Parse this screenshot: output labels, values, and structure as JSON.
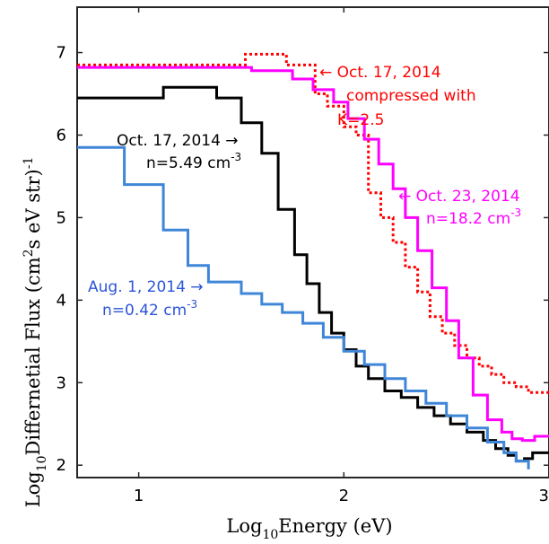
{
  "chart_data": {
    "type": "line",
    "xlabel": {
      "base": "Log",
      "sub": "10",
      "rest": "Energy  (eV)"
    },
    "ylabel": {
      "base": "Log",
      "sub": "10",
      "mid": "Differnetial  Flux  (cm",
      "sup": "2",
      "rest": "s  eV  str)",
      "sup2": "-1"
    },
    "xlim": [
      0.7,
      3.0
    ],
    "ylim": [
      1.85,
      7.55
    ],
    "xticks": [
      1,
      2,
      3
    ],
    "yticks": [
      2,
      3,
      4,
      5,
      6,
      7
    ],
    "grid": false,
    "series": [
      {
        "name": "Oct. 17, 2014 compressed with K=2.5",
        "color": "#ff0000",
        "style": "dotted",
        "step": true,
        "x": [
          0.7,
          1.48,
          1.52,
          1.72,
          1.86,
          1.92,
          2.0,
          2.06,
          2.12,
          2.18,
          2.24,
          2.3,
          2.36,
          2.42,
          2.48,
          2.54,
          2.6,
          2.66,
          2.72,
          2.78,
          2.84,
          2.9,
          3.0
        ],
        "y": [
          6.85,
          6.85,
          6.98,
          6.85,
          6.5,
          6.35,
          6.1,
          6.0,
          5.3,
          5.0,
          4.7,
          4.4,
          4.1,
          3.8,
          3.6,
          3.45,
          3.3,
          3.2,
          3.1,
          3.0,
          2.95,
          2.88,
          2.88
        ]
      },
      {
        "name": "Oct. 23, 2014",
        "color": "#ff00ff",
        "style": "solid",
        "step": true,
        "x": [
          0.7,
          1.3,
          1.55,
          1.75,
          1.85,
          1.95,
          2.02,
          2.1,
          2.17,
          2.24,
          2.3,
          2.36,
          2.43,
          2.5,
          2.56,
          2.63,
          2.7,
          2.77,
          2.82,
          2.87,
          2.93,
          3.0
        ],
        "y": [
          6.82,
          6.82,
          6.78,
          6.68,
          6.55,
          6.4,
          6.2,
          5.95,
          5.65,
          5.35,
          5.0,
          4.6,
          4.15,
          3.75,
          3.3,
          2.85,
          2.55,
          2.4,
          2.32,
          2.3,
          2.35,
          2.35
        ]
      },
      {
        "name": "Oct. 17, 2014",
        "color": "#000000",
        "style": "solid",
        "step": true,
        "x": [
          0.7,
          0.98,
          1.12,
          1.38,
          1.5,
          1.6,
          1.68,
          1.76,
          1.82,
          1.88,
          1.94,
          2.0,
          2.06,
          2.12,
          2.2,
          2.28,
          2.36,
          2.44,
          2.52,
          2.6,
          2.68,
          2.74,
          2.8,
          2.84,
          2.88,
          2.92,
          3.0
        ],
        "y": [
          6.45,
          6.45,
          6.58,
          6.45,
          6.15,
          5.78,
          5.1,
          4.55,
          4.2,
          3.85,
          3.6,
          3.4,
          3.2,
          3.05,
          2.9,
          2.82,
          2.7,
          2.6,
          2.5,
          2.4,
          2.3,
          2.2,
          2.12,
          2.05,
          2.08,
          2.15,
          2.15
        ]
      },
      {
        "name": "Aug. 1, 2014",
        "color": "#3f86d8",
        "style": "solid",
        "step": true,
        "x": [
          0.7,
          0.93,
          1.12,
          1.24,
          1.34,
          1.5,
          1.6,
          1.7,
          1.8,
          1.9,
          2.0,
          2.1,
          2.2,
          2.3,
          2.4,
          2.5,
          2.6,
          2.7,
          2.78,
          2.84,
          2.9
        ],
        "y": [
          5.85,
          5.4,
          4.85,
          4.42,
          4.22,
          4.08,
          3.95,
          3.85,
          3.72,
          3.55,
          3.38,
          3.22,
          3.05,
          2.9,
          2.75,
          2.6,
          2.45,
          2.28,
          2.15,
          2.05,
          1.95
        ]
      }
    ],
    "annotations": [
      {
        "lines": [
          "← Oct. 17, 2014",
          "compressed with",
          "K=2.5"
        ],
        "color": "#ff0000"
      },
      {
        "lines": [
          "Oct. 17, 2014 →",
          "n=5.49 cm",
          "-3"
        ],
        "color": "#000000"
      },
      {
        "lines": [
          "← Oct. 23, 2014",
          "n=18.2 cm",
          "-3"
        ],
        "color": "#ff00ff"
      },
      {
        "lines": [
          "Aug. 1, 2014 →",
          "n=0.42 cm",
          "-3"
        ],
        "color": "#2b55d8"
      }
    ]
  }
}
